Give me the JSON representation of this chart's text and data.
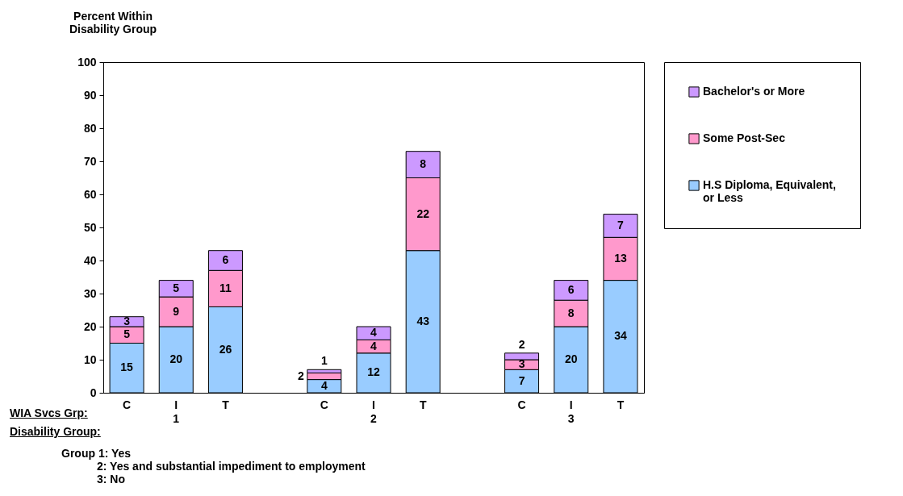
{
  "chart_data": {
    "type": "bar",
    "stacked": true,
    "ylabel": "Percent Within Disability Group",
    "categories": [
      "C",
      "I\n1",
      "T",
      null,
      "C",
      "I\n2",
      "T",
      null,
      "C",
      "I\n3",
      "T"
    ],
    "series": [
      {
        "name": "H.S Diploma, Equivalent, or Less",
        "color": "#99ccff",
        "values": [
          15,
          20,
          26,
          null,
          4,
          12,
          43,
          null,
          7,
          20,
          34
        ]
      },
      {
        "name": "Some Post-Sec",
        "color": "#ff99cc",
        "values": [
          5,
          9,
          11,
          null,
          2,
          4,
          22,
          null,
          3,
          8,
          13
        ]
      },
      {
        "name": "Bachelor's or More",
        "color": "#cc99ff",
        "values": [
          3,
          5,
          6,
          null,
          1,
          4,
          8,
          null,
          2,
          6,
          7
        ]
      }
    ],
    "ylim": [
      0,
      100
    ],
    "yticks": [
      0,
      10,
      20,
      30,
      40,
      50,
      60,
      70,
      80,
      90,
      100
    ],
    "grid": false,
    "legend": "right",
    "data_labels": true,
    "annotations": [
      "WIA Svcs Grp:",
      "Disability Group:",
      "Group 1:  Yes",
      "2:  Yes and substantial impediment to employment",
      "3:  No"
    ]
  }
}
